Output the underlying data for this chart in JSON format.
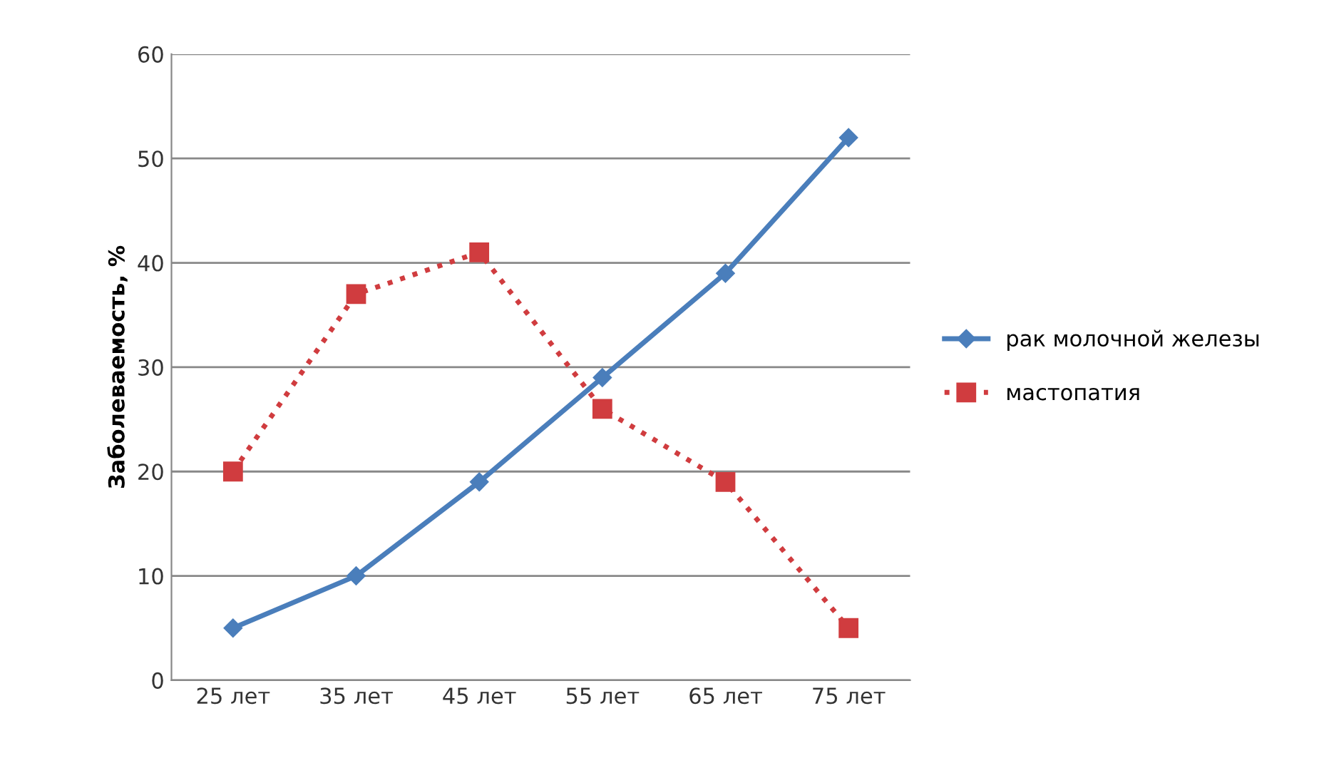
{
  "chart_data": {
    "type": "line",
    "ylabel": "Заболеваемость, %",
    "categories": [
      "25 лет",
      "35 лет",
      "45 лет",
      "55 лет",
      "65 лет",
      "75 лет"
    ],
    "series": [
      {
        "name": "рак молочной железы",
        "color": "#4a7ebb",
        "values": [
          5,
          10,
          19,
          29,
          39,
          52
        ],
        "marker": "diamond",
        "line_style": "solid"
      },
      {
        "name": "мастопатия",
        "color": "#d03c3f",
        "values": [
          20,
          37,
          41,
          26,
          19,
          5
        ],
        "marker": "square",
        "line_style": "dotted"
      }
    ],
    "ylim": [
      0,
      60
    ],
    "yticks": [
      0,
      10,
      20,
      30,
      40,
      50,
      60
    ],
    "grid": "y",
    "legend": "right"
  }
}
